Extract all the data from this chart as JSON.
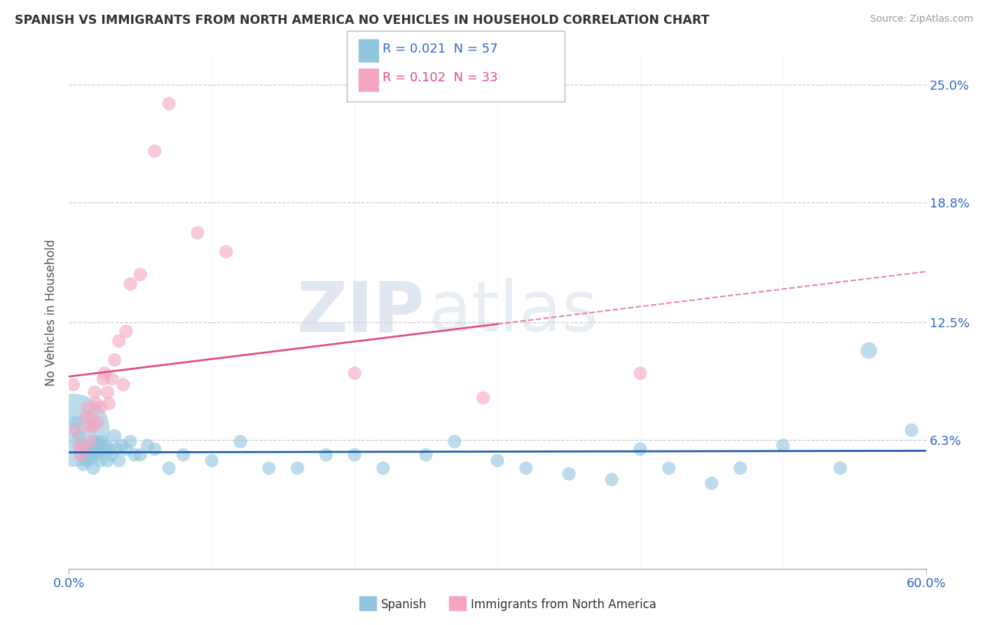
{
  "title": "SPANISH VS IMMIGRANTS FROM NORTH AMERICA NO VEHICLES IN HOUSEHOLD CORRELATION CHART",
  "source": "Source: ZipAtlas.com",
  "ylabel": "No Vehicles in Household",
  "xlim": [
    0.0,
    0.6
  ],
  "ylim": [
    -0.005,
    0.265
  ],
  "yticks": [
    0.063,
    0.125,
    0.188,
    0.25
  ],
  "ytick_labels": [
    "6.3%",
    "12.5%",
    "18.8%",
    "25.0%"
  ],
  "color_blue": "#92c5de",
  "color_pink": "#f4a6c0",
  "color_blue_line": "#2060b0",
  "color_pink_line": "#e05080",
  "watermark_color": "#dde8f0",
  "spanish_x": [
    0.003,
    0.005,
    0.007,
    0.008,
    0.009,
    0.01,
    0.01,
    0.012,
    0.013,
    0.014,
    0.015,
    0.016,
    0.017,
    0.018,
    0.019,
    0.02,
    0.021,
    0.022,
    0.023,
    0.025,
    0.026,
    0.027,
    0.028,
    0.03,
    0.032,
    0.033,
    0.035,
    0.037,
    0.04,
    0.043,
    0.046,
    0.05,
    0.055,
    0.06,
    0.07,
    0.08,
    0.1,
    0.12,
    0.14,
    0.16,
    0.18,
    0.2,
    0.22,
    0.25,
    0.27,
    0.3,
    0.32,
    0.35,
    0.38,
    0.4,
    0.42,
    0.45,
    0.47,
    0.5,
    0.54,
    0.56,
    0.59
  ],
  "spanish_y": [
    0.068,
    0.072,
    0.065,
    0.058,
    0.055,
    0.06,
    0.05,
    0.058,
    0.052,
    0.055,
    0.053,
    0.057,
    0.048,
    0.062,
    0.055,
    0.06,
    0.057,
    0.052,
    0.062,
    0.058,
    0.06,
    0.052,
    0.058,
    0.055,
    0.065,
    0.058,
    0.052,
    0.06,
    0.058,
    0.062,
    0.055,
    0.055,
    0.06,
    0.058,
    0.048,
    0.055,
    0.052,
    0.062,
    0.048,
    0.048,
    0.055,
    0.055,
    0.048,
    0.055,
    0.062,
    0.052,
    0.048,
    0.045,
    0.042,
    0.058,
    0.048,
    0.04,
    0.048,
    0.06,
    0.048,
    0.11,
    0.068
  ],
  "spanish_size": [
    350,
    12,
    12,
    12,
    12,
    12,
    12,
    12,
    12,
    12,
    12,
    12,
    12,
    12,
    12,
    12,
    12,
    12,
    12,
    12,
    12,
    12,
    12,
    12,
    12,
    12,
    12,
    12,
    12,
    12,
    12,
    12,
    12,
    12,
    12,
    12,
    12,
    12,
    12,
    12,
    12,
    12,
    12,
    12,
    12,
    12,
    12,
    12,
    12,
    12,
    12,
    12,
    12,
    12,
    12,
    18,
    12
  ],
  "immigrant_x": [
    0.003,
    0.005,
    0.007,
    0.008,
    0.01,
    0.012,
    0.013,
    0.014,
    0.015,
    0.016,
    0.017,
    0.018,
    0.019,
    0.02,
    0.022,
    0.024,
    0.025,
    0.027,
    0.028,
    0.03,
    0.032,
    0.035,
    0.038,
    0.04,
    0.043,
    0.05,
    0.06,
    0.07,
    0.09,
    0.11,
    0.2,
    0.29,
    0.4
  ],
  "immigrant_y": [
    0.092,
    0.068,
    0.06,
    0.055,
    0.058,
    0.075,
    0.08,
    0.07,
    0.062,
    0.075,
    0.07,
    0.088,
    0.082,
    0.072,
    0.08,
    0.095,
    0.098,
    0.088,
    0.082,
    0.095,
    0.105,
    0.115,
    0.092,
    0.12,
    0.145,
    0.15,
    0.215,
    0.24,
    0.172,
    0.162,
    0.098,
    0.085,
    0.098
  ],
  "immigrant_size": [
    12,
    12,
    12,
    12,
    12,
    12,
    12,
    12,
    12,
    12,
    12,
    12,
    12,
    12,
    12,
    12,
    12,
    12,
    12,
    12,
    12,
    12,
    12,
    12,
    12,
    12,
    12,
    12,
    12,
    12,
    12,
    12,
    12
  ]
}
